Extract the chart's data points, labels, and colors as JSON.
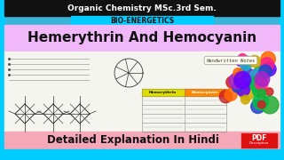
{
  "bg_color": "#3ab4d8",
  "top_bar_color": "#111111",
  "top_bar_text": "Organic Chemistry MSc.3rd Sem.",
  "top_bar_text_color": "#ffffff",
  "bio_energetics_text": "BIO-ENERGETICS",
  "bio_energetics_bg": "#00ccff",
  "title_text": "Hemerythrin And Hemocyanin",
  "title_color": "#111111",
  "title_bg": "#f0b8f8",
  "handwritten_text": "Handwritten Notes",
  "bottom_bar_bg": "#f4a8b8",
  "bottom_bar_text": "Detailed Explanation In Hindi",
  "bottom_bar_text_color": "#111111",
  "notes_bg": "#f5f5f0",
  "pdf_bg": "#dd1111",
  "cyan_border": "#00ccff"
}
